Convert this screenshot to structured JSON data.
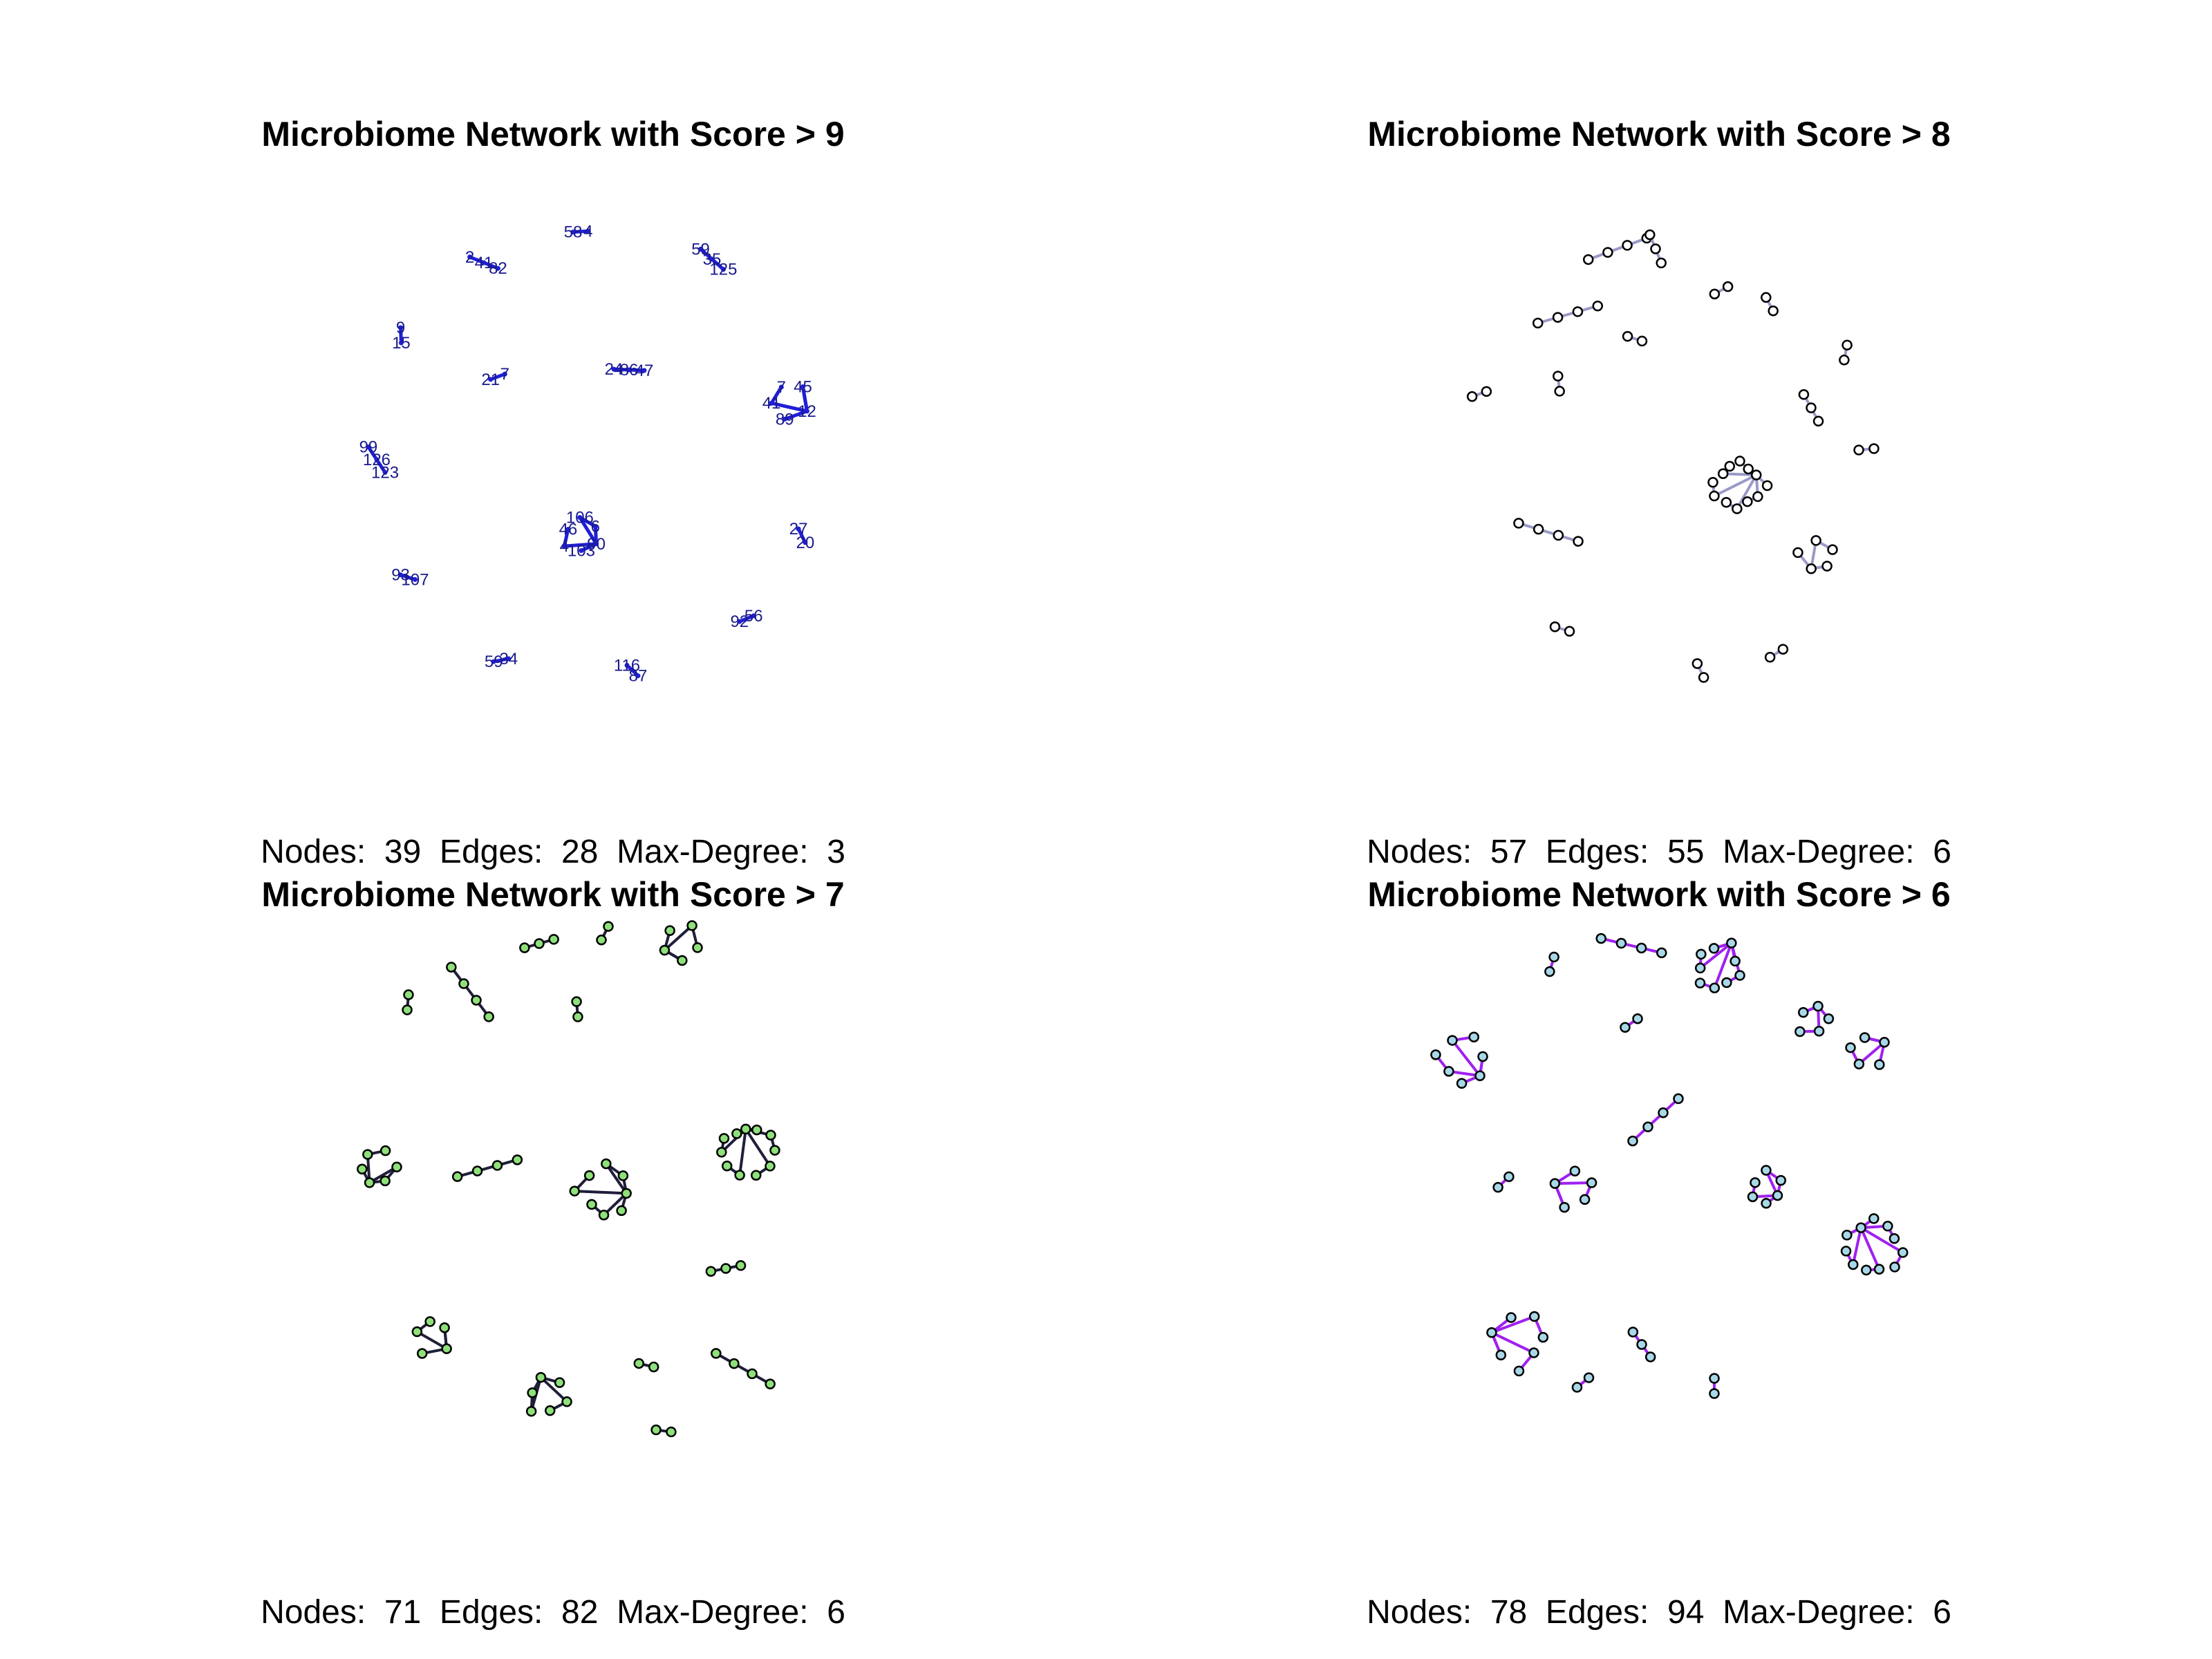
{
  "panels": [
    {
      "title": "Microbiome Network with Score >  9",
      "stats": {
        "nodes_label": "Nodes:",
        "nodes": "39",
        "edges_label": "Edges:",
        "edges": "28",
        "maxdeg_label": "Max-Degree:",
        "maxdeg": "3"
      },
      "style": {
        "edge_color": "#1f1fd6",
        "node_fill": "#1f1fd6",
        "labels": true,
        "label_color": "#1a1a8c"
      },
      "clusters": [
        {
          "c": [
            840,
            335
          ],
          "labels": [
            "4",
            "58"
          ]
        },
        {
          "c": [
            700,
            380
          ],
          "labels": [
            "82",
            "41",
            "2"
          ]
        },
        {
          "c": [
            1030,
            375
          ],
          "labels": [
            "59",
            "35",
            "125"
          ]
        },
        {
          "c": [
            580,
            485
          ],
          "labels": [
            "9",
            "15"
          ]
        },
        {
          "c": [
            720,
            545
          ],
          "labels": [
            "7",
            "21"
          ]
        },
        {
          "c": [
            910,
            535
          ],
          "labels": [
            "47",
            "86",
            "24"
          ]
        },
        {
          "c": [
            1140,
            580
          ],
          "labels": [
            "12",
            "89",
            "41",
            "7",
            "45"
          ]
        },
        {
          "c": [
            545,
            665
          ],
          "labels": [
            "123",
            "126",
            "99"
          ]
        },
        {
          "c": [
            840,
            775
          ],
          "labels": [
            "90",
            "103",
            "4",
            "46",
            "106",
            "6"
          ]
        },
        {
          "c": [
            1160,
            775
          ],
          "labels": [
            "27",
            "20"
          ]
        },
        {
          "c": [
            590,
            835
          ],
          "labels": [
            "93",
            "107"
          ]
        },
        {
          "c": [
            1080,
            895
          ],
          "labels": [
            "92",
            "56"
          ]
        },
        {
          "c": [
            725,
            955
          ],
          "labels": [
            "59",
            "34"
          ]
        },
        {
          "c": [
            915,
            970
          ],
          "labels": [
            "116",
            "87"
          ]
        }
      ]
    },
    {
      "title": "Microbiome Network with Score >  8",
      "stats": {
        "nodes_label": "Nodes:",
        "nodes": "57",
        "edges_label": "Edges:",
        "edges": "55",
        "maxdeg_label": "Max-Degree:",
        "maxdeg": "6"
      },
      "style": {
        "edge_color": "#9a9ac8",
        "node_fill": "#ffffff",
        "labels": false
      },
      "clusters": [
        {
          "c": [
            740,
            360
          ],
          "count": 4
        },
        {
          "c": [
            668,
            455
          ],
          "count": 4
        },
        {
          "c": [
            795,
            360
          ],
          "count": 3
        },
        {
          "c": [
            890,
            420
          ],
          "count": 2
        },
        {
          "c": [
            765,
            490
          ],
          "count": 2
        },
        {
          "c": [
            960,
            440
          ],
          "count": 2
        },
        {
          "c": [
            1070,
            510
          ],
          "count": 2
        },
        {
          "c": [
            1020,
            590
          ],
          "count": 3
        },
        {
          "c": [
            1100,
            650
          ],
          "count": 2
        },
        {
          "c": [
            540,
            570
          ],
          "count": 2
        },
        {
          "c": [
            655,
            555
          ],
          "count": 2
        },
        {
          "c": [
            640,
            770
          ],
          "count": 4
        },
        {
          "c": [
            1030,
            805
          ],
          "count": 5
        },
        {
          "c": [
            915,
            700
          ],
          "count": 12
        },
        {
          "c": [
            660,
            910
          ],
          "count": 2
        },
        {
          "c": [
            970,
            945
          ],
          "count": 2
        },
        {
          "c": [
            860,
            970
          ],
          "count": 2
        }
      ]
    },
    {
      "title": "Microbiome Network with Score >  7",
      "stats": {
        "nodes_label": "Nodes:",
        "nodes": "71",
        "edges_label": "Edges:",
        "edges": "82",
        "maxdeg_label": "Max-Degree:",
        "maxdeg": "6"
      },
      "style": {
        "edge_color": "#1f1f3a",
        "node_fill": "#8ee07a",
        "labels": false
      },
      "clusters": [
        {
          "c": [
            680,
            335
          ],
          "count": 4
        },
        {
          "c": [
            780,
            265
          ],
          "count": 3
        },
        {
          "c": [
            875,
            250
          ],
          "count": 2
        },
        {
          "c": [
            985,
            265
          ],
          "count": 5
        },
        {
          "c": [
            590,
            350
          ],
          "count": 2
        },
        {
          "c": [
            835,
            360
          ],
          "count": 2
        },
        {
          "c": [
            1080,
            560
          ],
          "count": 11
        },
        {
          "c": [
            545,
            590
          ],
          "count": 6
        },
        {
          "c": [
            705,
            590
          ],
          "count": 4
        },
        {
          "c": [
            875,
            625
          ],
          "count": 8
        },
        {
          "c": [
            1050,
            735
          ],
          "count": 3
        },
        {
          "c": [
            625,
            830
          ],
          "count": 5
        },
        {
          "c": [
            790,
            920
          ],
          "count": 6
        },
        {
          "c": [
            935,
            875
          ],
          "count": 2
        },
        {
          "c": [
            1075,
            880
          ],
          "count": 4
        },
        {
          "c": [
            960,
            970
          ],
          "count": 2
        }
      ]
    },
    {
      "title": "Microbiome Network with Score >  6",
      "stats": {
        "nodes_label": "Nodes:",
        "nodes": "78",
        "edges_label": "Edges:",
        "edges": "94",
        "maxdeg_label": "Max-Degree:",
        "maxdeg": "6"
      },
      "style": {
        "edge_color": "#a020f0",
        "node_fill": "#a8d8e8",
        "labels": false
      },
      "clusters": [
        {
          "c": [
            760,
            268
          ],
          "count": 4
        },
        {
          "c": [
            885,
            300
          ],
          "count": 9
        },
        {
          "c": [
            645,
            295
          ],
          "count": 2
        },
        {
          "c": [
            1025,
            375
          ],
          "count": 5
        },
        {
          "c": [
            760,
            380
          ],
          "count": 2
        },
        {
          "c": [
            515,
            435
          ],
          "count": 7
        },
        {
          "c": [
            1100,
            420
          ],
          "count": 5
        },
        {
          "c": [
            795,
            520
          ],
          "count": 4
        },
        {
          "c": [
            955,
            620
          ],
          "count": 6
        },
        {
          "c": [
            575,
            610
          ],
          "count": 2
        },
        {
          "c": [
            680,
            620
          ],
          "count": 5
        },
        {
          "c": [
            1110,
            705
          ],
          "count": 11
        },
        {
          "c": [
            600,
            840
          ],
          "count": 7
        },
        {
          "c": [
            775,
            845
          ],
          "count": 3
        },
        {
          "c": [
            690,
            900
          ],
          "count": 2
        },
        {
          "c": [
            880,
            905
          ],
          "count": 2
        }
      ]
    }
  ]
}
